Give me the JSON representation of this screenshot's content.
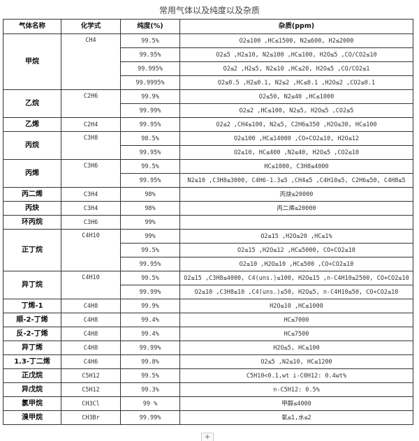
{
  "title": "常用气体以及纯度以及杂质",
  "headers": [
    "气体名称",
    "化学式",
    "纯度(%)",
    "杂质(ppm)"
  ],
  "add_button": "+",
  "gases": [
    {
      "name": "甲烷",
      "formula": "CH4",
      "entries": [
        {
          "purity": "99.5%",
          "impurity": "O2≤100 ,HC≤1500, N2≤600, H2≤2000"
        },
        {
          "purity": "99.95%",
          "impurity": "O2≤5 ,H2≤10, N2≤100 ,HC≤100, H2O≤5 ,CO/CO2≤10"
        },
        {
          "purity": "99.995%",
          "impurity": "O2≤2 ,H2≤5, N2≤10 ,HC≤20, H2O≤5 ,CO/CO2≤1"
        },
        {
          "purity": "99.9995%",
          "impurity": "O2≤0.5 ,H2≤0.1, N2≤2 ,HC≤0.1 ,H2O≤2 ,CO2≤0.1"
        }
      ]
    },
    {
      "name": "乙烷",
      "formula": "C2H6",
      "entries": [
        {
          "purity": "99.9%",
          "impurity": "O2≤50, N2≤40 ,HC≤1000"
        },
        {
          "purity": "99.99%",
          "impurity": "O2≤2 ,HC≤100, N2≤5, H2O≤5 ,CO2≤5"
        }
      ]
    },
    {
      "name": "乙烯",
      "formula": "C2H4",
      "entries": [
        {
          "purity": "99.95%",
          "impurity": "O2≤2 ,CH4≤100, N2≤5, C2H6≤350 ,H2O≤30, HC≤100"
        }
      ]
    },
    {
      "name": "丙烷",
      "formula": "C3H8",
      "entries": [
        {
          "purity": "98.5%",
          "impurity": "O2≤100 ,HC≤14000 ,CO+CO2≤10, H2O≤12"
        },
        {
          "purity": "99.95%",
          "impurity": "O2≤10, HC≤400 ,N2≤40, H2O≤5 ,CO2≤10"
        }
      ]
    },
    {
      "name": "丙烯",
      "formula": "C3H6",
      "entries": [
        {
          "purity": "99.5%",
          "impurity": "HC≤1000, C3H8≤4000"
        },
        {
          "purity": "99.95%",
          "impurity": "N2≤10 ,C3H8≤3000, C4H6-1.3≤5 ,CH4≤5 ,C4H10≤5, C2H6≤50, C4H8≤5"
        }
      ]
    },
    {
      "name": "丙二烯",
      "formula": "C3H4",
      "entries": [
        {
          "purity": "98%",
          "impurity": "丙炔≤20000"
        }
      ]
    },
    {
      "name": "丙炔",
      "formula": "C3H4",
      "entries": [
        {
          "purity": "98%",
          "impurity": "丙二烯≤20000"
        }
      ]
    },
    {
      "name": "环丙烷",
      "formula": "C3H6",
      "entries": [
        {
          "purity": "99%",
          "impurity": ""
        }
      ]
    },
    {
      "name": "正丁烷",
      "formula": "C4H10",
      "entries": [
        {
          "purity": "99%",
          "impurity": "O2≤15 ,H2O≤20 ,HC≤1%"
        },
        {
          "purity": "99.5%",
          "impurity": "O2≤15 ,H2O≤12 ,HC≤5000, CO+CO2≤10"
        },
        {
          "purity": "99.95%",
          "impurity": "O2≤10 ,H2O≤10 ,HC≤500 ,CO+CO2≤10"
        }
      ]
    },
    {
      "name": "异丁烷",
      "formula": "C4H10",
      "entries": [
        {
          "purity": "99.5%",
          "impurity": "O2≤15 ,C3H8≤4000, C4(uns.)≤100, H2O≤15 ,n-C4H10≤2500, CO+CO2≤10"
        },
        {
          "purity": "99.99%",
          "impurity": "O2≤10 ,C3H8≤10 ,C4(uns.)≤50, H2O≤5, n-C4H10≤50, CO+CO2≤10"
        }
      ]
    },
    {
      "name": "丁烯-1",
      "formula": "C4H8",
      "entries": [
        {
          "purity": "99.9%",
          "impurity": "H2O≤10 ,HC≤1000"
        }
      ]
    },
    {
      "name": "顺-2-丁烯",
      "formula": "C4H8",
      "entries": [
        {
          "purity": "99.4%",
          "impurity": "HC≤7000"
        }
      ]
    },
    {
      "name": "反-2-丁烯",
      "formula": "C4H8",
      "entries": [
        {
          "purity": "99.4%",
          "impurity": "HC≤7500"
        }
      ]
    },
    {
      "name": "异丁烯",
      "formula": "C4H8",
      "entries": [
        {
          "purity": "99.99%",
          "impurity": "H2O≤5, HC≤100"
        }
      ]
    },
    {
      "name": "1.3-丁二烯",
      "formula": "C4H6",
      "entries": [
        {
          "purity": "99.8%",
          "impurity": "O2≤5 ,N2≤10, HC≤1200"
        }
      ]
    },
    {
      "name": "正戊烷",
      "formula": "C5H12",
      "entries": [
        {
          "purity": "99.5%",
          "impurity": "C5H10<0.1,wt i-C0H12: 0.4wt%"
        }
      ]
    },
    {
      "name": "异戊烷",
      "formula": "C5H12",
      "entries": [
        {
          "purity": "99.3%",
          "impurity": "n-C5H12: 0.5%"
        }
      ]
    },
    {
      "name": "氯甲烷",
      "formula": "CH3Cl",
      "entries": [
        {
          "purity": "99 %",
          "impurity": "甲醇≤4000"
        }
      ]
    },
    {
      "name": "溴甲烷",
      "formula": "CH3Br",
      "entries": [
        {
          "purity": "99.99%",
          "impurity": "氧≤1,水≤2"
        }
      ]
    }
  ]
}
